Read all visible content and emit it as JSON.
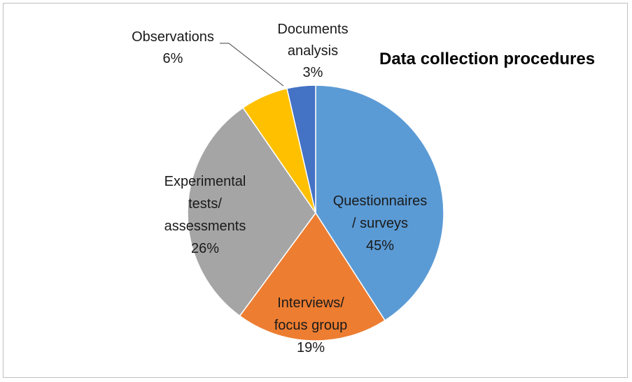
{
  "chart_data": {
    "type": "pie",
    "title": "Data collection procedures",
    "slices": [
      {
        "label_lines": [
          "Questionnaires",
          "/ surveys"
        ],
        "percent_label": "45%",
        "value": 45,
        "color": "#5b9bd5"
      },
      {
        "label_lines": [
          "Interviews/",
          "focus group"
        ],
        "percent_label": "19%",
        "value": 19,
        "color": "#ed7d31"
      },
      {
        "label_lines": [
          "Experimental",
          "tests/",
          "assessments"
        ],
        "percent_label": "26%",
        "value": 26,
        "color": "#a5a5a5"
      },
      {
        "label_lines": [
          "Observations"
        ],
        "percent_label": "6%",
        "value": 6,
        "color": "#ffc000"
      },
      {
        "label_lines": [
          "Documents",
          "analysis"
        ],
        "percent_label": "3%",
        "value": 3,
        "color": "#4472c4"
      }
    ],
    "legend": "none"
  }
}
